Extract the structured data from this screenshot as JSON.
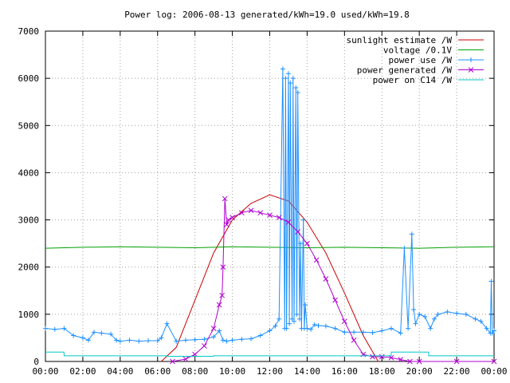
{
  "chart_data": {
    "type": "line",
    "title": "Power log: 2006-08-13 generated/kWh=19.0 used/kWh=19.8",
    "xlabel": "",
    "ylabel": "",
    "xlim": [
      0,
      24
    ],
    "ylim": [
      0,
      7000
    ],
    "grid": true,
    "legend_position": "top-right",
    "x_ticks": [
      "00:00",
      "02:00",
      "04:00",
      "06:00",
      "08:00",
      "10:00",
      "12:00",
      "14:00",
      "16:00",
      "18:00",
      "20:00",
      "22:00",
      "00:00"
    ],
    "y_ticks": [
      0,
      1000,
      2000,
      3000,
      4000,
      5000,
      6000,
      7000
    ],
    "series": [
      {
        "name": "sunlight estimate /W",
        "color": "#cc0000",
        "marker": "none",
        "x": [
          6.2,
          7.0,
          8.0,
          9.0,
          10.0,
          11.0,
          12.0,
          13.0,
          14.0,
          15.0,
          16.0,
          17.0,
          17.8
        ],
        "values": [
          0,
          300,
          1300,
          2300,
          3000,
          3350,
          3530,
          3400,
          2950,
          2300,
          1450,
          550,
          0
        ]
      },
      {
        "name": "voltage /0.1V",
        "color": "#00a000",
        "marker": "none",
        "x": [
          0,
          2,
          4,
          6,
          8,
          10,
          12,
          14,
          16,
          18,
          20,
          22,
          24
        ],
        "values": [
          2400,
          2420,
          2430,
          2420,
          2410,
          2430,
          2420,
          2410,
          2420,
          2410,
          2400,
          2420,
          2430
        ]
      },
      {
        "name": "power use /W",
        "color": "#1e90ff",
        "marker": "plus",
        "x": [
          0,
          0.5,
          1,
          1.5,
          2,
          2.3,
          2.6,
          3,
          3.5,
          3.8,
          4,
          4.5,
          5,
          5.5,
          6,
          6.2,
          6.5,
          7,
          7.5,
          8,
          8.5,
          9,
          9.3,
          9.5,
          9.7,
          10,
          10.5,
          11,
          11.5,
          12,
          12.3,
          12.5,
          12.7,
          12.8,
          12.85,
          12.9,
          13.0,
          13.05,
          13.1,
          13.2,
          13.25,
          13.3,
          13.4,
          13.45,
          13.5,
          13.6,
          13.65,
          13.7,
          13.8,
          13.85,
          13.9,
          14.0,
          14.2,
          14.4,
          14.6,
          15,
          15.5,
          16,
          16.5,
          17,
          17.5,
          18,
          18.5,
          19,
          19.2,
          19.4,
          19.6,
          19.7,
          19.8,
          20,
          20.3,
          20.6,
          20.8,
          21,
          21.5,
          22,
          22.5,
          23,
          23.3,
          23.6,
          23.8,
          23.85,
          23.9,
          24
        ],
        "values": [
          700,
          680,
          700,
          550,
          500,
          450,
          620,
          600,
          580,
          450,
          430,
          450,
          430,
          440,
          440,
          500,
          800,
          430,
          450,
          460,
          470,
          520,
          650,
          450,
          430,
          450,
          470,
          480,
          550,
          650,
          750,
          900,
          6200,
          700,
          6000,
          700,
          6100,
          800,
          5900,
          900,
          6000,
          850,
          5800,
          1000,
          5700,
          900,
          2500,
          700,
          3000,
          700,
          1200,
          700,
          680,
          780,
          760,
          750,
          700,
          620,
          620,
          620,
          610,
          650,
          700,
          600,
          2400,
          700,
          2700,
          1100,
          800,
          1000,
          950,
          700,
          900,
          1000,
          1050,
          1020,
          1000,
          900,
          850,
          700,
          600,
          1700,
          600,
          650
        ],
        "display_values": [
          "1700",
          "6200"
        ]
      },
      {
        "name": "power generated /W",
        "color": "#b000d0",
        "marker": "cross",
        "x": [
          6.8,
          7.5,
          8.0,
          8.5,
          9.0,
          9.3,
          9.45,
          9.5,
          9.6,
          9.7,
          9.8,
          10.0,
          10.5,
          11.0,
          11.5,
          12.0,
          12.5,
          13.0,
          13.5,
          14.0,
          14.5,
          15.0,
          15.5,
          16.0,
          16.5,
          17.0,
          17.5,
          18.0,
          18.5,
          19.0,
          19.5,
          20.0,
          22.0,
          24.0
        ],
        "values": [
          0,
          50,
          150,
          330,
          700,
          1200,
          1400,
          2000,
          3450,
          2900,
          3000,
          3050,
          3150,
          3200,
          3150,
          3100,
          3050,
          2950,
          2750,
          2500,
          2150,
          1750,
          1300,
          850,
          450,
          150,
          100,
          100,
          80,
          40,
          0,
          0,
          0,
          0
        ]
      },
      {
        "name": "power on C14 /W",
        "color": "#00c8c8",
        "marker": "none",
        "x": [
          0,
          0.99,
          1.0,
          6.5,
          6.5,
          9.0,
          9.0,
          17.5,
          17.5,
          18.5,
          18.5,
          20.5,
          20.5,
          24
        ],
        "values": [
          200,
          200,
          120,
          120,
          110,
          110,
          120,
          120,
          120,
          120,
          200,
          200,
          120,
          120
        ]
      }
    ]
  }
}
